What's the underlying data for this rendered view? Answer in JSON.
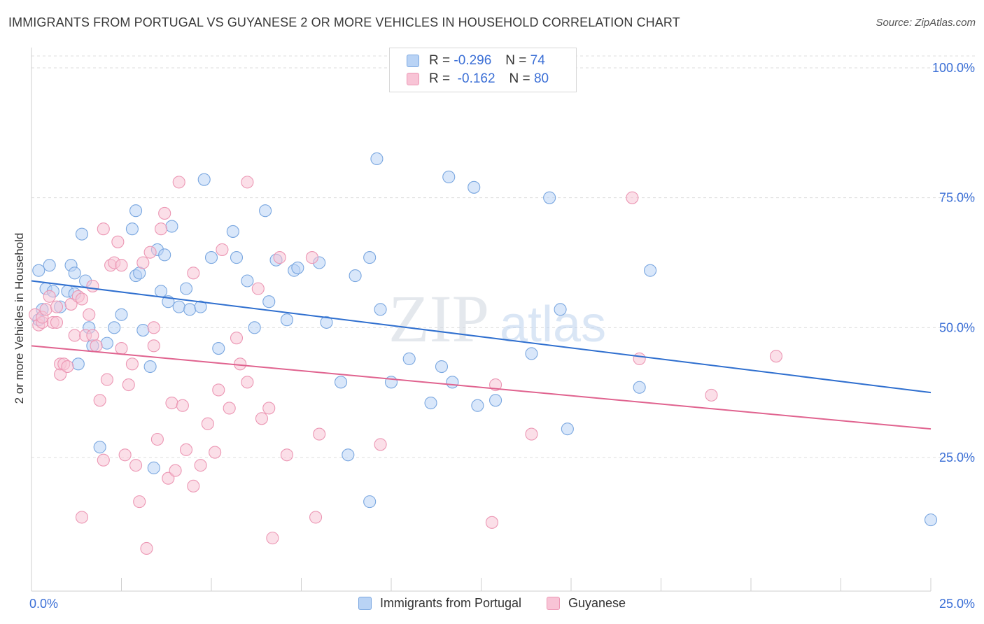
{
  "header": {
    "title": "IMMIGRANTS FROM PORTUGAL VS GUYANESE 2 OR MORE VEHICLES IN HOUSEHOLD CORRELATION CHART",
    "source": "Source: ZipAtlas.com"
  },
  "watermark": {
    "zip": "ZIP",
    "atlas": "atlas"
  },
  "legend_top": {
    "rows": [
      {
        "r_label": "R =",
        "r_value": "-0.296",
        "n_label": "N =",
        "n_value": "74"
      },
      {
        "r_label": "R =",
        "r_value": "-0.162",
        "n_label": "N =",
        "n_value": "80"
      }
    ]
  },
  "legend_bottom": {
    "items": [
      {
        "label": "Immigrants from Portugal"
      },
      {
        "label": "Guyanese"
      }
    ]
  },
  "colors": {
    "blue_fill": "#b9d3f5",
    "blue_stroke": "#7aa7e0",
    "blue_line": "#2f6fcf",
    "pink_fill": "#f8c4d6",
    "pink_stroke": "#ec97b4",
    "pink_line": "#e0638f",
    "tick_label": "#3b6fd6",
    "grid": "#dddddd"
  },
  "chart_data": {
    "type": "scatter",
    "title": "IMMIGRANTS FROM PORTUGAL VS GUYANESE 2 OR MORE VEHICLES IN HOUSEHOLD CORRELATION CHART",
    "xlabel": "",
    "ylabel": "2 or more Vehicles in Household",
    "xlim": [
      0,
      25
    ],
    "ylim": [
      0,
      105
    ],
    "x_tick_labels": [
      "0.0%",
      "25.0%"
    ],
    "y_ticks": [
      25,
      50,
      75,
      100
    ],
    "y_tick_labels": [
      "25.0%",
      "50.0%",
      "75.0%",
      "100.0%"
    ],
    "grid": true,
    "legend_position": "top-center",
    "series": [
      {
        "name": "Immigrants from Portugal",
        "color": "#b9d3f5",
        "trend": {
          "x": [
            0,
            25
          ],
          "y": [
            59.0,
            37.5
          ]
        },
        "points": [
          [
            0.2,
            61.0
          ],
          [
            0.2,
            51.5
          ],
          [
            0.3,
            53.5
          ],
          [
            0.4,
            57.5
          ],
          [
            0.5,
            62.0
          ],
          [
            0.6,
            57.0
          ],
          [
            0.8,
            54.0
          ],
          [
            1.0,
            57.0
          ],
          [
            1.1,
            62.0
          ],
          [
            1.2,
            60.5
          ],
          [
            1.2,
            56.5
          ],
          [
            1.3,
            43.0
          ],
          [
            1.4,
            68.0
          ],
          [
            1.5,
            59.0
          ],
          [
            1.6,
            50.0
          ],
          [
            1.7,
            46.5
          ],
          [
            1.9,
            27.0
          ],
          [
            2.1,
            47.0
          ],
          [
            2.3,
            50.0
          ],
          [
            2.5,
            52.5
          ],
          [
            2.8,
            69.0
          ],
          [
            2.9,
            72.5
          ],
          [
            2.9,
            60.0
          ],
          [
            3.0,
            60.5
          ],
          [
            3.1,
            49.5
          ],
          [
            3.3,
            42.5
          ],
          [
            3.4,
            23.0
          ],
          [
            3.5,
            65.0
          ],
          [
            3.6,
            57.0
          ],
          [
            3.7,
            64.0
          ],
          [
            3.8,
            55.0
          ],
          [
            3.9,
            69.5
          ],
          [
            4.1,
            54.0
          ],
          [
            4.3,
            57.5
          ],
          [
            4.4,
            53.5
          ],
          [
            4.7,
            54.0
          ],
          [
            4.8,
            78.5
          ],
          [
            5.0,
            63.5
          ],
          [
            5.2,
            46.0
          ],
          [
            5.6,
            68.5
          ],
          [
            5.7,
            63.5
          ],
          [
            6.0,
            59.0
          ],
          [
            6.2,
            50.0
          ],
          [
            6.5,
            72.5
          ],
          [
            6.6,
            55.0
          ],
          [
            6.8,
            63.0
          ],
          [
            7.1,
            51.5
          ],
          [
            7.3,
            61.0
          ],
          [
            7.4,
            61.5
          ],
          [
            8.0,
            62.5
          ],
          [
            8.2,
            51.0
          ],
          [
            8.6,
            39.5
          ],
          [
            8.8,
            25.5
          ],
          [
            9.0,
            60.0
          ],
          [
            9.4,
            16.5
          ],
          [
            9.4,
            63.5
          ],
          [
            9.6,
            82.5
          ],
          [
            9.7,
            53.5
          ],
          [
            10.0,
            39.5
          ],
          [
            10.5,
            44.0
          ],
          [
            11.1,
            35.5
          ],
          [
            11.4,
            42.5
          ],
          [
            11.6,
            79.0
          ],
          [
            11.7,
            39.5
          ],
          [
            12.3,
            77.0
          ],
          [
            12.4,
            35.0
          ],
          [
            12.9,
            36.0
          ],
          [
            13.9,
            45.0
          ],
          [
            14.4,
            75.0
          ],
          [
            14.7,
            53.5
          ],
          [
            14.9,
            30.5
          ],
          [
            16.9,
            38.5
          ],
          [
            17.2,
            61.0
          ],
          [
            25.0,
            13.0
          ]
        ]
      },
      {
        "name": "Guyanese",
        "color": "#f8c4d6",
        "trend": {
          "x": [
            0,
            25
          ],
          "y": [
            46.5,
            30.5
          ]
        },
        "points": [
          [
            0.1,
            52.5
          ],
          [
            0.2,
            50.5
          ],
          [
            0.3,
            51.0
          ],
          [
            0.3,
            52.0
          ],
          [
            0.4,
            53.5
          ],
          [
            0.5,
            56.0
          ],
          [
            0.6,
            51.0
          ],
          [
            0.7,
            54.0
          ],
          [
            0.7,
            51.0
          ],
          [
            0.8,
            41.0
          ],
          [
            0.8,
            43.0
          ],
          [
            0.9,
            43.0
          ],
          [
            1.0,
            42.5
          ],
          [
            1.1,
            54.5
          ],
          [
            1.2,
            48.5
          ],
          [
            1.3,
            56.0
          ],
          [
            1.4,
            55.5
          ],
          [
            1.4,
            13.5
          ],
          [
            1.5,
            48.5
          ],
          [
            1.6,
            52.5
          ],
          [
            1.7,
            48.5
          ],
          [
            1.7,
            58.0
          ],
          [
            1.8,
            46.5
          ],
          [
            1.9,
            36.0
          ],
          [
            2.0,
            24.5
          ],
          [
            2.0,
            69.0
          ],
          [
            2.1,
            40.0
          ],
          [
            2.2,
            62.0
          ],
          [
            2.3,
            62.5
          ],
          [
            2.4,
            66.5
          ],
          [
            2.5,
            62.0
          ],
          [
            2.5,
            46.0
          ],
          [
            2.6,
            25.5
          ],
          [
            2.7,
            39.0
          ],
          [
            2.8,
            43.0
          ],
          [
            2.9,
            23.5
          ],
          [
            3.0,
            16.5
          ],
          [
            3.1,
            62.5
          ],
          [
            3.2,
            7.5
          ],
          [
            3.3,
            64.5
          ],
          [
            3.4,
            50.0
          ],
          [
            3.4,
            46.5
          ],
          [
            3.5,
            28.5
          ],
          [
            3.6,
            69.0
          ],
          [
            3.7,
            72.0
          ],
          [
            3.8,
            21.0
          ],
          [
            3.9,
            35.5
          ],
          [
            4.0,
            22.5
          ],
          [
            4.1,
            78.0
          ],
          [
            4.2,
            35.0
          ],
          [
            4.3,
            26.5
          ],
          [
            4.5,
            60.5
          ],
          [
            4.5,
            19.5
          ],
          [
            4.7,
            23.5
          ],
          [
            4.9,
            31.5
          ],
          [
            5.1,
            26.0
          ],
          [
            5.2,
            38.0
          ],
          [
            5.3,
            65.0
          ],
          [
            5.5,
            34.5
          ],
          [
            5.7,
            48.0
          ],
          [
            5.8,
            43.0
          ],
          [
            6.0,
            39.5
          ],
          [
            6.0,
            78.0
          ],
          [
            6.3,
            57.5
          ],
          [
            6.4,
            32.5
          ],
          [
            6.6,
            34.5
          ],
          [
            6.7,
            9.5
          ],
          [
            6.9,
            63.5
          ],
          [
            7.1,
            25.5
          ],
          [
            7.8,
            63.5
          ],
          [
            7.9,
            13.5
          ],
          [
            8.0,
            29.5
          ],
          [
            9.7,
            27.5
          ],
          [
            12.8,
            12.5
          ],
          [
            12.9,
            39.0
          ],
          [
            13.9,
            29.5
          ],
          [
            16.7,
            75.0
          ],
          [
            16.9,
            44.0
          ],
          [
            18.9,
            37.0
          ],
          [
            20.7,
            44.5
          ]
        ]
      }
    ]
  }
}
